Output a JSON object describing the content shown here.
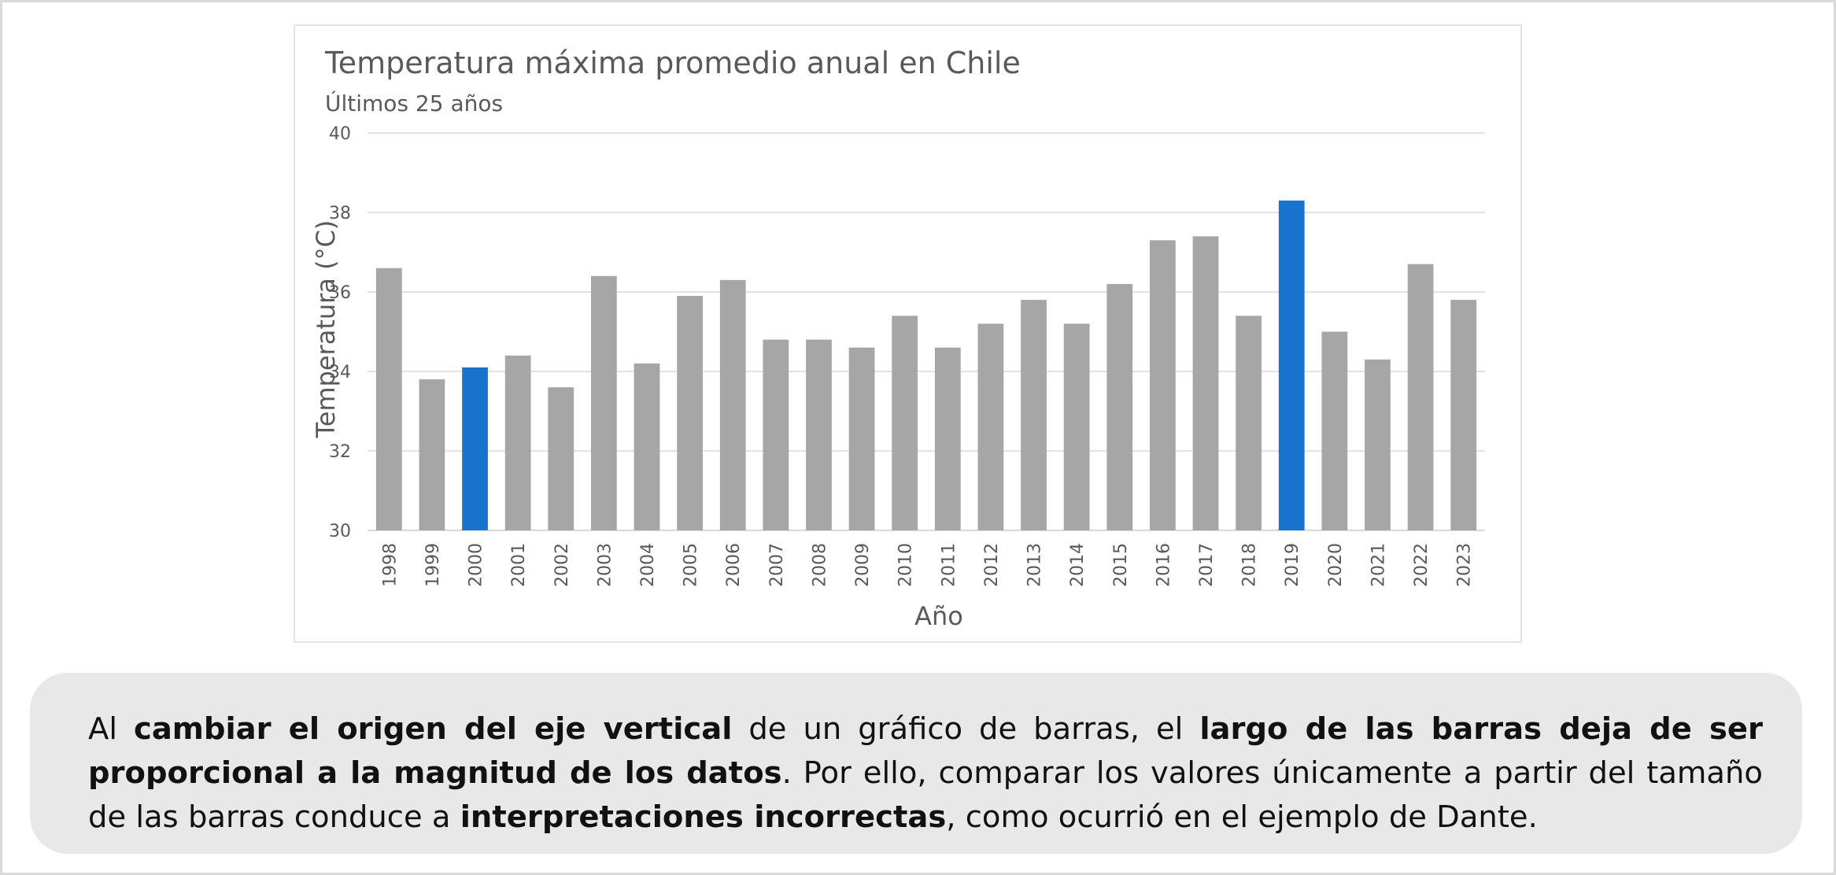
{
  "chart_data": {
    "type": "bar",
    "title": "Temperatura máxima promedio anual en Chile",
    "subtitle": "Últimos 25 años",
    "xlabel": "Año",
    "ylabel": "Temperatura (°C)",
    "ylim": [
      30,
      40
    ],
    "yticks": [
      "30",
      "32",
      "34",
      "36",
      "38",
      "40"
    ],
    "grid": true,
    "categories": [
      "1998",
      "1999",
      "2000",
      "2001",
      "2002",
      "2003",
      "2004",
      "2005",
      "2006",
      "2007",
      "2008",
      "2009",
      "2010",
      "2011",
      "2012",
      "2013",
      "2014",
      "2015",
      "2016",
      "2017",
      "2018",
      "2019",
      "2020",
      "2021",
      "2022",
      "2023"
    ],
    "values": [
      36.6,
      33.8,
      34.1,
      34.4,
      33.6,
      36.4,
      34.2,
      35.9,
      36.3,
      34.8,
      34.8,
      34.6,
      35.4,
      34.6,
      35.2,
      35.8,
      35.2,
      36.2,
      37.3,
      37.4,
      35.4,
      38.3,
      35.0,
      34.3,
      36.7,
      35.8
    ],
    "highlighted": [
      "2000",
      "2019"
    ],
    "colors": {
      "bar": "#a6a6a6",
      "highlight": "#1873cc",
      "grid": "#d9d9d9",
      "text": "#595959"
    }
  },
  "note": {
    "segments": [
      {
        "text": "Al ",
        "bold": false
      },
      {
        "text": "cambiar el origen del eje vertical",
        "bold": true
      },
      {
        "text": " de un gráfico de barras, el ",
        "bold": false
      },
      {
        "text": "largo de las barras deja de ser proporcional a la magnitud de los datos",
        "bold": true
      },
      {
        "text": ". Por ello, comparar los valores únicamente a partir del tamaño de las barras conduce a ",
        "bold": false
      },
      {
        "text": "interpretaciones incorrectas",
        "bold": true
      },
      {
        "text": ", como ocurrió en el ejemplo de Dante.",
        "bold": false
      }
    ]
  }
}
